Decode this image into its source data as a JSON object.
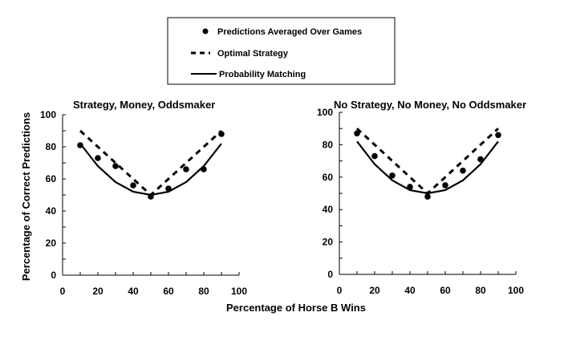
{
  "colors": {
    "ink": "#000000",
    "background": "#ffffff"
  },
  "legend": {
    "items": [
      {
        "label": "Predictions Averaged Over Games",
        "marker": "dot"
      },
      {
        "label": "Optimal Strategy",
        "marker": "dashed-line"
      },
      {
        "label": "Probability Matching",
        "marker": "solid-line"
      }
    ]
  },
  "shared_axes": {
    "xlabel": "Percentage of Horse B Wins",
    "ylabel": "Percentage of Correct Predictions"
  },
  "chart_data": [
    {
      "type": "scatter",
      "title": "Strategy, Money, Oddsmaker",
      "xlim": [
        0,
        100
      ],
      "ylim": [
        0,
        100
      ],
      "xticks": [
        0,
        20,
        40,
        60,
        80,
        100
      ],
      "yticks": [
        0,
        20,
        40,
        60,
        80,
        100
      ],
      "grid": false,
      "series": [
        {
          "name": "Predictions Averaged Over Games",
          "style": "dots",
          "x": [
            10,
            20,
            30,
            40,
            50,
            60,
            70,
            80,
            90
          ],
          "y": [
            81,
            73,
            68,
            56,
            49,
            54,
            66,
            66,
            88
          ]
        },
        {
          "name": "Optimal Strategy",
          "style": "dashed",
          "x": [
            10,
            20,
            30,
            40,
            50,
            60,
            70,
            80,
            90
          ],
          "y": [
            90,
            80,
            70,
            60,
            50,
            60,
            70,
            80,
            90
          ]
        },
        {
          "name": "Probability Matching",
          "style": "solid",
          "x": [
            10,
            20,
            30,
            40,
            50,
            60,
            70,
            80,
            90
          ],
          "y": [
            82,
            68,
            58,
            52,
            50,
            52,
            58,
            68,
            82
          ]
        }
      ]
    },
    {
      "type": "scatter",
      "title": "No Strategy, No Money, No Oddsmaker",
      "xlim": [
        0,
        100
      ],
      "ylim": [
        0,
        100
      ],
      "xticks": [
        0,
        20,
        40,
        60,
        80,
        100
      ],
      "yticks": [
        0,
        20,
        40,
        60,
        80,
        100
      ],
      "grid": false,
      "series": [
        {
          "name": "Predictions Averaged Over Games",
          "style": "dots",
          "x": [
            10,
            20,
            30,
            40,
            50,
            60,
            70,
            80,
            90
          ],
          "y": [
            87,
            73,
            61,
            54,
            48,
            55,
            64,
            71,
            86
          ]
        },
        {
          "name": "Optimal Strategy",
          "style": "dashed",
          "x": [
            10,
            20,
            30,
            40,
            50,
            60,
            70,
            80,
            90
          ],
          "y": [
            90,
            80,
            70,
            60,
            50,
            60,
            70,
            80,
            90
          ]
        },
        {
          "name": "Probability Matching",
          "style": "solid",
          "x": [
            10,
            20,
            30,
            40,
            50,
            60,
            70,
            80,
            90
          ],
          "y": [
            82,
            68,
            58,
            52,
            50,
            52,
            58,
            68,
            82
          ]
        }
      ]
    }
  ]
}
